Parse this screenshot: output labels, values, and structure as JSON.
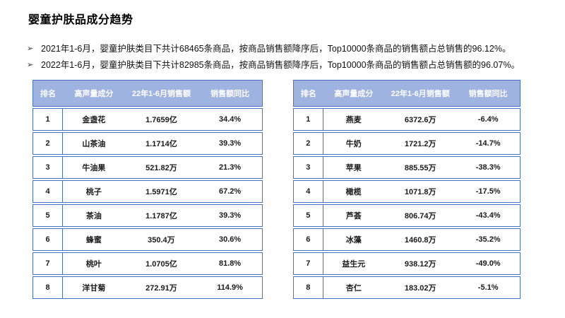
{
  "slide": {
    "title": "婴童护肤品成分趋势",
    "bullet_glyph": "➢",
    "bullets": [
      "2021年1-6月，婴童护肤类目下共计68465条商品，按商品销售额降序后，Top10000条商品的销售额占总销售的96.12%。",
      "2022年1-6月，婴童护肤类目下共计82985条商品，按商品销售额降序后，Top10000条商品的销售额占总销售额的96.07%。"
    ]
  },
  "colors": {
    "table_border": "#4472C4",
    "header_bg": "#9FB3E0",
    "header_text": "#FFFFFF",
    "body_text": "#1A1A1A"
  },
  "tables": [
    {
      "name": "ingredients-2021-period-left",
      "headers": [
        "排名",
        "高声量成分",
        "22年1-6月销售额",
        "销售额同比"
      ],
      "rows": [
        [
          "1",
          "金盏花",
          "1.7659亿",
          "34.4%"
        ],
        [
          "2",
          "山茶油",
          "1.1714亿",
          "39.3%"
        ],
        [
          "3",
          "牛油果",
          "521.82万",
          "21.3%"
        ],
        [
          "4",
          "桃子",
          "1.5971亿",
          "67.2%"
        ],
        [
          "5",
          "茶油",
          "1.1787亿",
          "39.3%"
        ],
        [
          "6",
          "蜂蜜",
          "350.4万",
          "30.6%"
        ],
        [
          "7",
          "桃叶",
          "1.0705亿",
          "81.8%"
        ],
        [
          "8",
          "洋甘菊",
          "272.91万",
          "114.9%"
        ]
      ]
    },
    {
      "name": "ingredients-2022-period-right",
      "headers": [
        "排名",
        "高声量成分",
        "22年1-6月销售额",
        "销售额同比"
      ],
      "rows": [
        [
          "1",
          "燕麦",
          "6372.6万",
          "-6.4%"
        ],
        [
          "2",
          "牛奶",
          "1721.2万",
          "-14.7%"
        ],
        [
          "3",
          "苹果",
          "885.55万",
          "-38.3%"
        ],
        [
          "4",
          "橄榄",
          "1071.8万",
          "-17.5%"
        ],
        [
          "5",
          "芦荟",
          "806.74万",
          "-43.4%"
        ],
        [
          "6",
          "冰藻",
          "1460.8万",
          "-35.2%"
        ],
        [
          "7",
          "益生元",
          "938.12万",
          "-49.0%"
        ],
        [
          "8",
          "杏仁",
          "183.02万",
          "-5.1%"
        ]
      ]
    }
  ]
}
